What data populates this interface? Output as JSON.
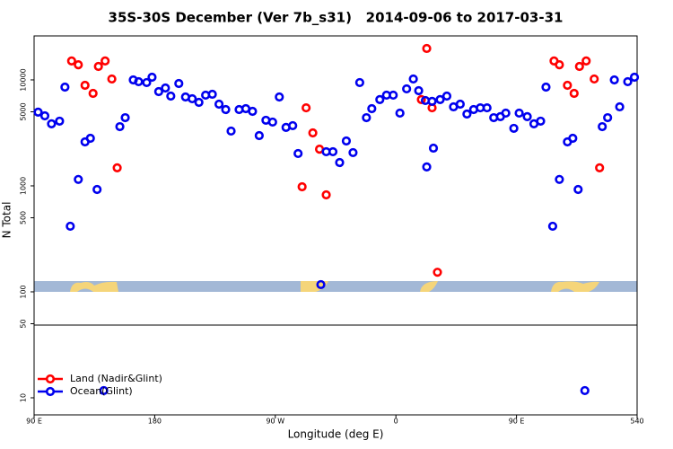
{
  "chart_data": {
    "type": "scatter",
    "title": "35S-30S December (Ver 7b_s31)   2014-09-06 to 2017-03-31",
    "x_label": "Longitude (deg E)",
    "y_label": "N Total",
    "log_y": true,
    "legend": "bottom-left",
    "xlim": [
      90,
      540
    ],
    "xticks": [
      {
        "value": 90,
        "label": "90 E"
      },
      180,
      {
        "value": 270,
        "label": "90 W"
      },
      {
        "value": 360,
        "label": "0"
      },
      {
        "value": 450,
        "label": "90 E"
      },
      540
    ],
    "ylim": [
      6.9,
      26000
    ],
    "yticks": [
      10,
      50,
      100,
      500,
      1000,
      5000,
      10000
    ],
    "series": [
      {
        "name": "Land (Nadir&Glint)",
        "color": "#ff0000",
        "x": [
          118,
          123,
          128,
          134,
          138,
          143,
          148,
          152,
          290,
          293,
          298,
          303,
          308,
          379,
          383,
          387,
          391,
          478,
          482,
          488,
          493,
          497,
          502,
          508,
          512
        ],
        "values": [
          15100,
          13900,
          8890,
          7460,
          13400,
          15100,
          10200,
          1480,
          980,
          5450,
          3160,
          2220,
          822,
          6520,
          19800,
          5450,
          153,
          15100,
          13900,
          8890,
          7460,
          13400,
          15100,
          10200,
          1480
        ]
      },
      {
        "name": "Ocean(Glint)",
        "color": "#0000ee",
        "x": [
          93,
          98,
          103,
          109,
          113,
          117,
          123,
          128,
          132,
          137,
          142,
          154,
          158,
          164,
          168,
          174,
          178,
          183,
          188,
          192,
          198,
          203,
          208,
          213,
          218,
          223,
          228,
          233,
          237,
          243,
          248,
          253,
          258,
          263,
          268,
          273,
          278,
          283,
          287,
          304,
          308,
          313,
          318,
          323,
          328,
          333,
          338,
          342,
          348,
          353,
          358,
          363,
          368,
          373,
          377,
          382,
          383,
          387,
          388,
          393,
          398,
          403,
          408,
          413,
          418,
          423,
          428,
          433,
          438,
          442,
          448,
          452,
          458,
          463,
          468,
          472,
          477,
          482,
          488,
          492,
          496,
          501,
          514,
          518,
          523,
          527,
          533,
          538
        ],
        "values": [
          4960,
          4580,
          3850,
          4080,
          8550,
          416,
          1150,
          2600,
          2810,
          925,
          11.7,
          3620,
          4400,
          10000,
          9620,
          9440,
          10600,
          7760,
          8390,
          7030,
          9250,
          6900,
          6640,
          6140,
          7180,
          7320,
          5900,
          5250,
          3290,
          5250,
          5350,
          5050,
          2980,
          4160,
          4000,
          6900,
          3560,
          3700,
          2020,
          117,
          2100,
          2100,
          1660,
          2650,
          2060,
          9440,
          4400,
          5350,
          6520,
          7180,
          7180,
          4860,
          8230,
          10200,
          7910,
          6390,
          1510,
          6270,
          2270,
          6520,
          7030,
          5570,
          5900,
          4760,
          5250,
          5450,
          5450,
          4400,
          4500,
          4860,
          3490,
          4860,
          4500,
          3850,
          4080,
          8550,
          416,
          1150,
          2600,
          2810,
          925,
          11.7,
          3620,
          4400,
          10000,
          5570,
          9620,
          10600
        ]
      }
    ]
  }
}
